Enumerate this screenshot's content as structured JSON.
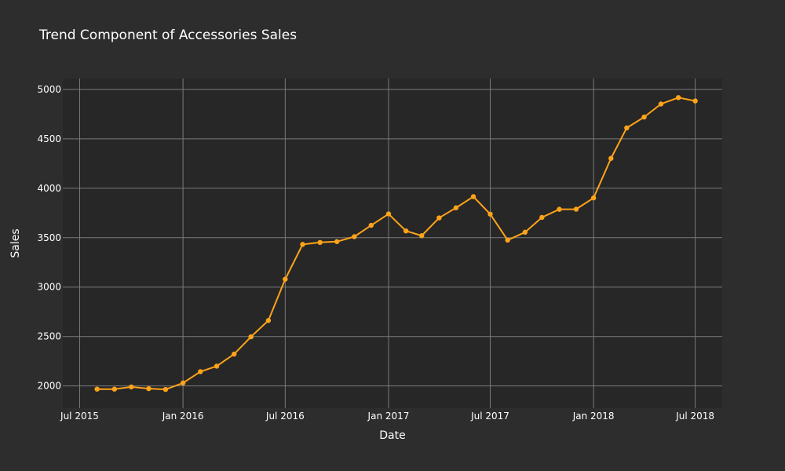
{
  "colors": {
    "page_bg": "#2d2d2d",
    "plot_bg": "#272727",
    "grid": "#7a7a7a",
    "line": "#ffa31a",
    "text": "#ffffff"
  },
  "chart_data": {
    "type": "line",
    "title": "Trend Component of Accessories Sales",
    "xlabel": "Date",
    "ylabel": "Sales",
    "grid": true,
    "xlim": [
      "2015-06-01",
      "2018-08-18"
    ],
    "ylim": [
      1775,
      5110
    ],
    "x_ticks": [
      {
        "date": "2015-07-01",
        "label": "Jul 2015"
      },
      {
        "date": "2016-01-01",
        "label": "Jan 2016"
      },
      {
        "date": "2016-07-01",
        "label": "Jul 2016"
      },
      {
        "date": "2017-01-01",
        "label": "Jan 2017"
      },
      {
        "date": "2017-07-01",
        "label": "Jul 2017"
      },
      {
        "date": "2018-01-01",
        "label": "Jan 2018"
      },
      {
        "date": "2018-07-01",
        "label": "Jul 2018"
      }
    ],
    "y_ticks": [
      2000,
      2500,
      3000,
      3500,
      4000,
      4500,
      5000
    ],
    "series": [
      {
        "color": "#ffa31a",
        "x": [
          "2015-08-01",
          "2015-09-01",
          "2015-10-01",
          "2015-11-01",
          "2015-12-01",
          "2016-01-01",
          "2016-02-01",
          "2016-03-01",
          "2016-04-01",
          "2016-05-01",
          "2016-06-01",
          "2016-07-01",
          "2016-08-01",
          "2016-09-01",
          "2016-10-01",
          "2016-11-01",
          "2016-12-01",
          "2017-01-01",
          "2017-02-01",
          "2017-03-01",
          "2017-04-01",
          "2017-05-01",
          "2017-06-01",
          "2017-07-01",
          "2017-08-01",
          "2017-09-01",
          "2017-10-01",
          "2017-11-01",
          "2017-12-01",
          "2018-01-01",
          "2018-02-01",
          "2018-03-01",
          "2018-04-01",
          "2018-05-01",
          "2018-06-01",
          "2018-07-01"
        ],
        "y": [
          1968,
          1968,
          1990,
          1973,
          1965,
          2030,
          2145,
          2200,
          2322,
          2497,
          2662,
          3080,
          3432,
          3452,
          3460,
          3510,
          3625,
          3740,
          3568,
          3520,
          3700,
          3802,
          3915,
          3738,
          3475,
          3555,
          3705,
          3787,
          3788,
          3902,
          4302,
          4610,
          4720,
          4852,
          4917,
          4883
        ]
      }
    ]
  }
}
